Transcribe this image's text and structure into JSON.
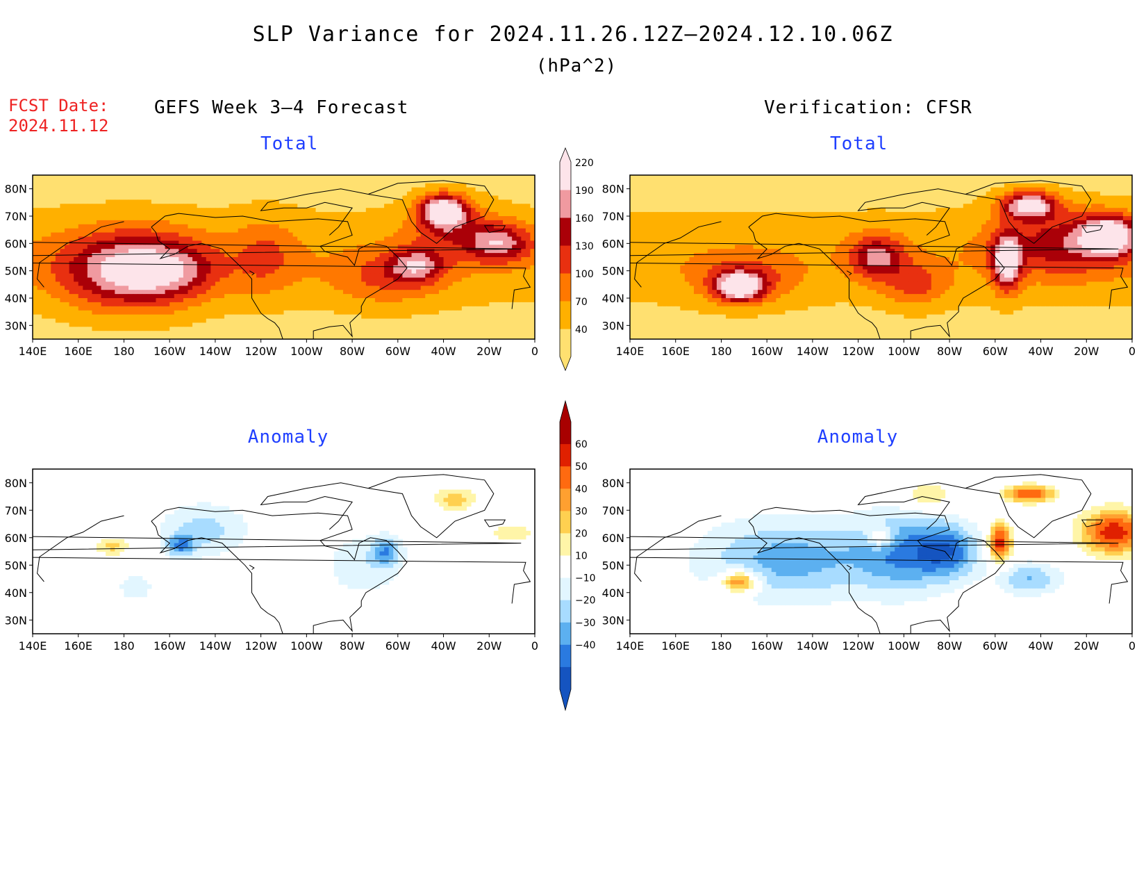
{
  "header": {
    "title": "SLP Variance for 2024.11.26.12Z–2024.12.10.06Z",
    "units": "(hPa^2)",
    "fcst_label": "FCST Date:",
    "fcst_date": "2024.11.12"
  },
  "columns": {
    "left": "GEFS Week 3–4 Forecast",
    "right": "Verification: CFSR"
  },
  "panels": [
    {
      "title": "Total",
      "kind": "total",
      "source": "forecast",
      "blobs": [
        {
          "lon": -178,
          "lat": 50,
          "rlon": 30,
          "rlat": 14,
          "v": 200
        },
        {
          "lon": -160,
          "lat": 50,
          "rlon": 22,
          "rlat": 10,
          "v": 120
        },
        {
          "lon": -118,
          "lat": 55,
          "rlon": 14,
          "rlat": 14,
          "v": 105
        },
        {
          "lon": -40,
          "lat": 72,
          "rlon": 10,
          "rlat": 6,
          "v": 240
        },
        {
          "lon": -35,
          "lat": 65,
          "rlon": 20,
          "rlat": 10,
          "v": 120
        },
        {
          "lon": -15,
          "lat": 60,
          "rlon": 14,
          "rlat": 7,
          "v": 170
        },
        {
          "lon": -52,
          "lat": 52,
          "rlon": 12,
          "rlat": 6,
          "v": 160
        },
        {
          "lon": -65,
          "lat": 47,
          "rlon": 25,
          "rlat": 10,
          "v": 110
        }
      ],
      "base": 55
    },
    {
      "title": "Total",
      "kind": "total",
      "source": "verification",
      "blobs": [
        {
          "lon": -172,
          "lat": 44,
          "rlon": 10,
          "rlat": 5,
          "v": 230
        },
        {
          "lon": -170,
          "lat": 47,
          "rlon": 22,
          "rlat": 9,
          "v": 120
        },
        {
          "lon": -112,
          "lat": 55,
          "rlon": 12,
          "rlat": 8,
          "v": 170
        },
        {
          "lon": -95,
          "lat": 45,
          "rlon": 14,
          "rlat": 8,
          "v": 120
        },
        {
          "lon": -55,
          "lat": 53,
          "rlon": 6,
          "rlat": 10,
          "v": 220
        },
        {
          "lon": -45,
          "lat": 74,
          "rlon": 12,
          "rlat": 5,
          "v": 230
        },
        {
          "lon": -10,
          "lat": 63,
          "rlon": 12,
          "rlat": 7,
          "v": 225
        },
        {
          "lon": -30,
          "lat": 60,
          "rlon": 30,
          "rlat": 12,
          "v": 150
        }
      ],
      "base": 55
    },
    {
      "title": "Anomaly",
      "kind": "anomaly",
      "source": "forecast",
      "blobs": [
        {
          "lon": -145,
          "lat": 63,
          "rlon": 20,
          "rlat": 10,
          "v": -24
        },
        {
          "lon": -155,
          "lat": 57,
          "rlon": 6,
          "rlat": 4,
          "v": -34
        },
        {
          "lon": -65,
          "lat": 55,
          "rlon": 6,
          "rlat": 5,
          "v": -32
        },
        {
          "lon": -75,
          "lat": 50,
          "rlon": 18,
          "rlat": 12,
          "v": -18
        },
        {
          "lon": -175,
          "lat": 42,
          "rlon": 8,
          "rlat": 5,
          "v": -18
        },
        {
          "lon": 175,
          "lat": 57,
          "rlon": 7,
          "rlat": 3,
          "v": 26
        },
        {
          "lon": -35,
          "lat": 74,
          "rlon": 9,
          "rlat": 4,
          "v": 26
        },
        {
          "lon": -10,
          "lat": 62,
          "rlon": 12,
          "rlat": 4,
          "v": 15
        }
      ],
      "base": 0
    },
    {
      "title": "Anomaly",
      "kind": "anomaly",
      "source": "verification",
      "blobs": [
        {
          "lon": -150,
          "lat": 52,
          "rlon": 40,
          "rlat": 15,
          "v": -35
        },
        {
          "lon": -100,
          "lat": 55,
          "rlon": 20,
          "rlat": 15,
          "v": -35
        },
        {
          "lon": -80,
          "lat": 55,
          "rlon": 14,
          "rlat": 10,
          "v": -38
        },
        {
          "lon": -45,
          "lat": 45,
          "rlon": 14,
          "rlat": 6,
          "v": -30
        },
        {
          "lon": -172,
          "lat": 44,
          "rlon": 8,
          "rlat": 4,
          "v": 55
        },
        {
          "lon": -110,
          "lat": 60,
          "rlon": 6,
          "rlat": 4,
          "v": 30
        },
        {
          "lon": -58,
          "lat": 58,
          "rlon": 5,
          "rlat": 7,
          "v": 60
        },
        {
          "lon": -45,
          "lat": 76,
          "rlon": 11,
          "rlat": 3,
          "v": 50
        },
        {
          "lon": -8,
          "lat": 62,
          "rlon": 14,
          "rlat": 8,
          "v": 58
        },
        {
          "lon": -90,
          "lat": 75,
          "rlon": 12,
          "rlat": 5,
          "v": 22
        }
      ],
      "base": 0
    }
  ],
  "axes": {
    "lon_ticks": [
      "140E",
      "160E",
      "180",
      "160W",
      "140W",
      "120W",
      "100W",
      "80W",
      "60W",
      "40W",
      "20W",
      "0"
    ],
    "lat_ticks": [
      "80N",
      "70N",
      "60N",
      "50N",
      "40N",
      "30N"
    ],
    "lon_range": [
      140,
      360
    ],
    "lat_range": [
      25,
      85
    ]
  },
  "colorbars": {
    "total": {
      "labels": [
        "220",
        "190",
        "160",
        "130",
        "100",
        "70",
        "40"
      ],
      "levels": [
        40,
        70,
        100,
        130,
        160,
        190,
        220
      ],
      "colors": [
        "#ffe070",
        "#ffb000",
        "#ff7800",
        "#e83010",
        "#aa0008",
        "#f09aa0",
        "#fde4ea"
      ]
    },
    "anomaly": {
      "labels": [
        "60",
        "50",
        "40",
        "30",
        "20",
        "10",
        "−10",
        "−20",
        "−30",
        "−40"
      ],
      "levels": [
        -40,
        -30,
        -20,
        -10,
        10,
        20,
        30,
        40,
        50,
        60
      ],
      "pos_colors": [
        "#fff5a8",
        "#ffd050",
        "#ffa030",
        "#ff6a10",
        "#e02000",
        "#a80000"
      ],
      "neg_colors": [
        "#e2f6ff",
        "#a8dcff",
        "#5cb0f0",
        "#2a7ae0",
        "#1554c0"
      ]
    }
  }
}
